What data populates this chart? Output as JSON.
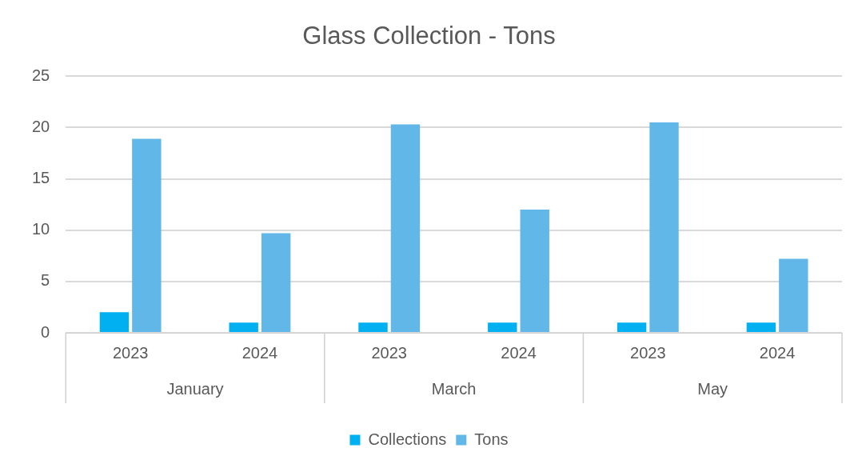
{
  "chart_data": {
    "type": "bar",
    "title": "Glass Collection - Tons",
    "categories": [
      "2023",
      "2024",
      "2023",
      "2024",
      "2023",
      "2024"
    ],
    "series": [
      {
        "name": "Collections",
        "color": "#00b0f0",
        "values": [
          2,
          1,
          1,
          1,
          1,
          1
        ]
      },
      {
        "name": "Tons",
        "color": "#61b8e8",
        "values": [
          18.9,
          9.7,
          20.3,
          12,
          20.5,
          7.2
        ]
      }
    ],
    "annotations": [
      "January",
      "March",
      "May"
    ],
    "ylim": [
      0,
      25
    ],
    "yticks": [
      0,
      5,
      10,
      15,
      20,
      25
    ],
    "grid": "y",
    "legend": "bottom"
  }
}
